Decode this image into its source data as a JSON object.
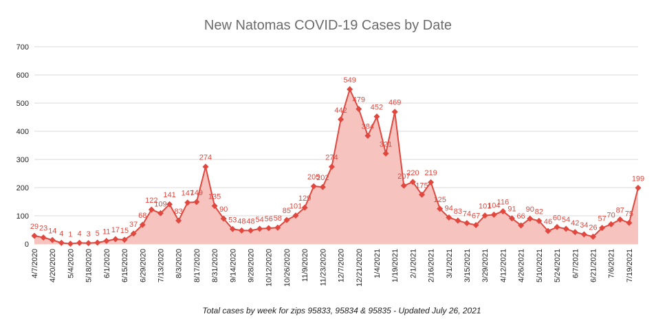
{
  "chart_data": {
    "type": "area",
    "title": "New Natomas COVID-19 Cases by Date",
    "footnote": "Total cases by week for zips 95833, 95834 & 95835 - Updated July 26, 2021",
    "xlabel": "",
    "ylabel": "",
    "ylim": [
      0,
      700
    ],
    "yticks": [
      0,
      100,
      200,
      300,
      400,
      500,
      600,
      700
    ],
    "yticks_labels": [
      "0",
      "100",
      "200",
      "300",
      "400",
      "500",
      "600",
      "700"
    ],
    "grid": true,
    "legend": "none",
    "colors": {
      "line": "#e0473e",
      "fill": "#f6c3bf",
      "marker": "#e0473e",
      "label": "#e0473e",
      "grid": "#d9d9d9"
    },
    "x_tick_labels": [
      "4/7/2020",
      "4/20/2020",
      "5/4/2020",
      "5/18/2020",
      "6/1/2020",
      "6/15/2020",
      "6/29/2020",
      "7/13/2020",
      "8/3/2020",
      "8/17/2020",
      "8/31/2020",
      "9/14/2020",
      "9/28/2020",
      "10/12/2020",
      "10/26/2020",
      "11/9/2020",
      "11/23/2020",
      "12/7/2020",
      "12/21/2020",
      "1/4/2021",
      "1/19/2021",
      "2/1/2021",
      "2/16/2021",
      "3/1/2021",
      "3/15/2021",
      "3/29/2021",
      "4/12/2021",
      "4/26/2021",
      "5/10/2021",
      "5/24/2021",
      "6/7/2021",
      "6/21/2021",
      "7/6/2021",
      "7/19/2021"
    ],
    "values": [
      29,
      23,
      14,
      4,
      1,
      4,
      3,
      5,
      11,
      17,
      15,
      37,
      68,
      122,
      109,
      141,
      83,
      147,
      149,
      274,
      135,
      90,
      53,
      48,
      48,
      54,
      56,
      58,
      85,
      101,
      129,
      205,
      202,
      274,
      442,
      549,
      479,
      384,
      452,
      321,
      469,
      207,
      220,
      175,
      219,
      125,
      94,
      83,
      74,
      67,
      101,
      104,
      116,
      91,
      66,
      90,
      82,
      46,
      60,
      54,
      42,
      34,
      26,
      57,
      70,
      87,
      75,
      199
    ],
    "data_labels": [
      "29",
      "23",
      "14",
      "4",
      "1",
      "4",
      "3",
      "5",
      "11",
      "17",
      "15",
      "37",
      "68",
      "122",
      "109",
      "141",
      "83",
      "147",
      "149",
      "274",
      "135",
      "90",
      "53",
      "48",
      "48",
      "54",
      "56",
      "58",
      "85",
      "101",
      "129",
      "205",
      "202",
      "274",
      "442",
      "549",
      "479",
      "384",
      "452",
      "321",
      "469",
      "207",
      "220",
      "175",
      "219",
      "125",
      "94",
      "83",
      "74",
      "67",
      "101",
      "104",
      "116",
      "91",
      "66",
      "90",
      "82",
      "46",
      "60",
      "54",
      "42",
      "34",
      "26",
      "57",
      "70",
      "87",
      "75",
      "199"
    ]
  }
}
